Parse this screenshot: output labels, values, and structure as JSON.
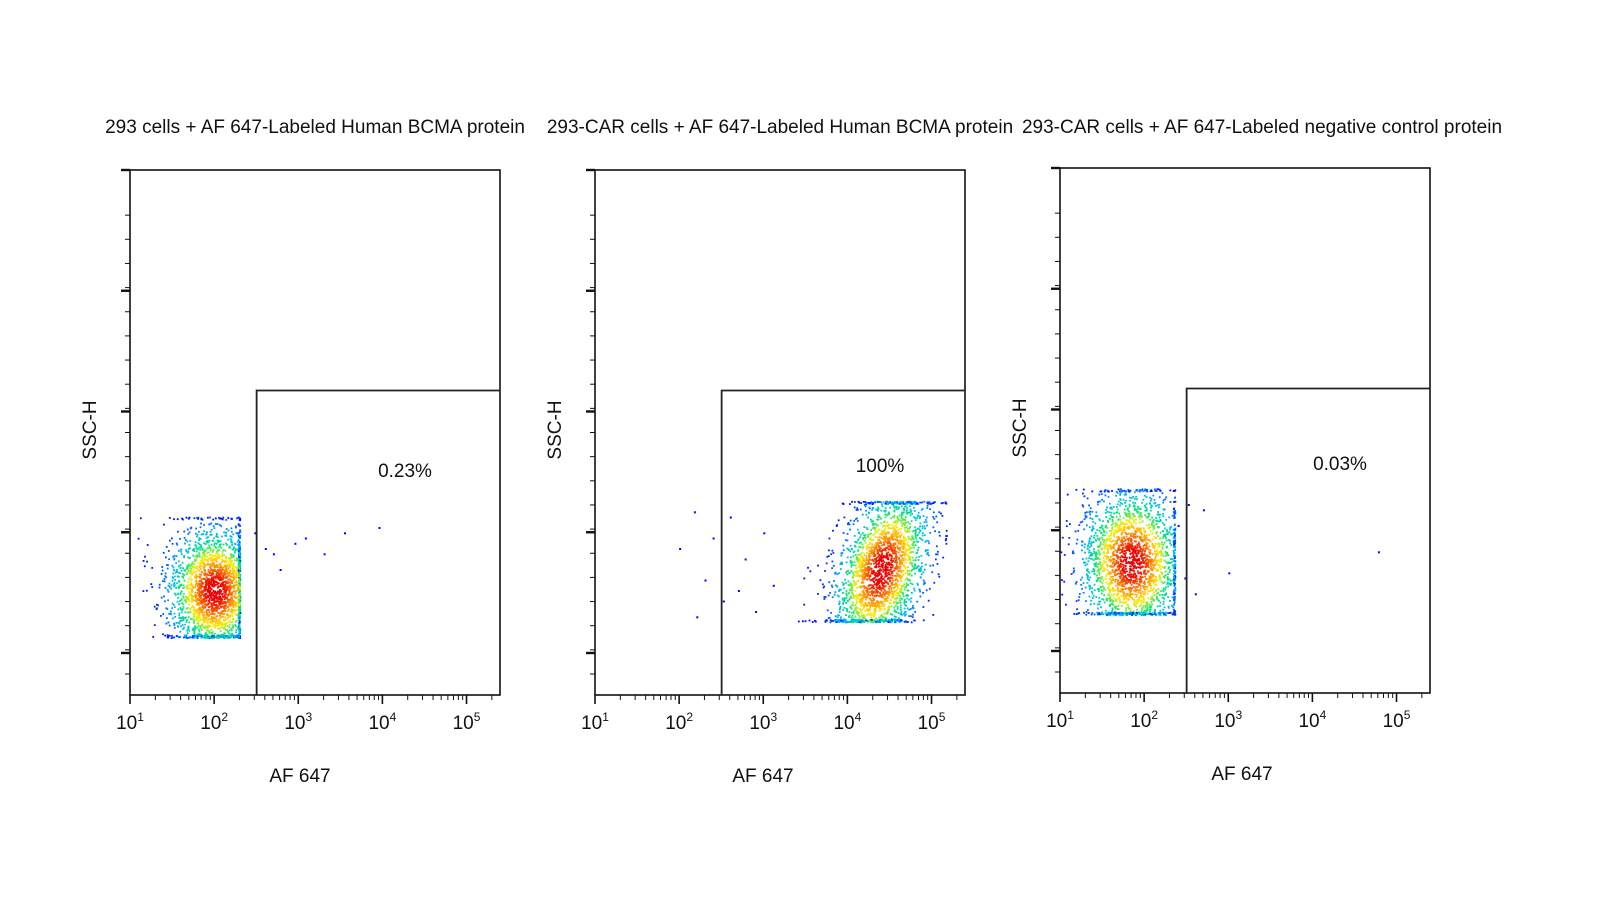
{
  "figure": {
    "panels": [
      {
        "title": "293 cells + AF 647-Labeled Human BCMA protein",
        "ylabel": "SSC-H",
        "xlabel": "AF 647",
        "gate_label": "0.23%"
      },
      {
        "title": "293-CAR cells + AF 647-Labeled Human BCMA protein",
        "ylabel": "SSC-H",
        "xlabel": "AF 647",
        "gate_label": "100%"
      },
      {
        "title": "293-CAR cells + AF 647-Labeled negative control protein",
        "ylabel": "SSC-H",
        "xlabel": "AF 647",
        "gate_label": "0.03%"
      }
    ]
  },
  "chart_data": [
    {
      "type": "scatter",
      "title": "293 cells + AF 647-Labeled Human BCMA protein",
      "xlabel": "AF 647",
      "ylabel": "SSC-H",
      "x_scale": "log",
      "xlim": [
        10,
        250000
      ],
      "x_ticks": [
        10,
        100,
        1000,
        10000,
        100000
      ],
      "x_tick_labels": [
        "10^1",
        "10^2",
        "10^3",
        "10^4",
        "10^5"
      ],
      "ylim": [
        0,
        1
      ],
      "y_tick_labels_shown": false,
      "grid": false,
      "gate": {
        "x_min": 320,
        "y_max_fraction": 0.58
      },
      "gate_percent": 0.23,
      "gate_label": "0.23%",
      "population": {
        "x_center": 100,
        "x_log_spread": 0.28,
        "y_center_fraction": 0.2,
        "y_spread_fraction": 0.06,
        "x_max": 200,
        "y_min_fraction": 0.11,
        "y_max_fraction": 0.34
      },
      "outliers": [
        {
          "x": 300,
          "y": 0.31
        },
        {
          "x": 400,
          "y": 0.28
        },
        {
          "x": 500,
          "y": 0.27
        },
        {
          "x": 600,
          "y": 0.24
        },
        {
          "x": 900,
          "y": 0.29
        },
        {
          "x": 1200,
          "y": 0.3
        },
        {
          "x": 2000,
          "y": 0.27
        },
        {
          "x": 3500,
          "y": 0.31
        },
        {
          "x": 9000,
          "y": 0.32
        }
      ]
    },
    {
      "type": "scatter",
      "title": "293-CAR cells + AF 647-Labeled Human BCMA protein",
      "xlabel": "AF 647",
      "ylabel": "SSC-H",
      "x_scale": "log",
      "xlim": [
        10,
        250000
      ],
      "x_ticks": [
        10,
        100,
        1000,
        10000,
        100000
      ],
      "x_tick_labels": [
        "10^1",
        "10^2",
        "10^3",
        "10^4",
        "10^5"
      ],
      "ylim": [
        0,
        1
      ],
      "y_tick_labels_shown": false,
      "grid": false,
      "gate": {
        "x_min": 320,
        "y_max_fraction": 0.58
      },
      "gate_percent": 100,
      "gate_label": "100%",
      "population": {
        "x_center": 25000,
        "x_log_spread": 0.28,
        "y_center_fraction": 0.24,
        "y_spread_fraction": 0.07,
        "x_min": 2500,
        "x_max": 150000,
        "y_min_fraction": 0.14,
        "y_max_fraction": 0.37
      },
      "outliers": [
        {
          "x": 100,
          "y": 0.28
        },
        {
          "x": 150,
          "y": 0.35
        },
        {
          "x": 160,
          "y": 0.15
        },
        {
          "x": 200,
          "y": 0.22
        },
        {
          "x": 250,
          "y": 0.3
        },
        {
          "x": 330,
          "y": 0.18
        },
        {
          "x": 400,
          "y": 0.34
        },
        {
          "x": 500,
          "y": 0.2
        },
        {
          "x": 600,
          "y": 0.26
        },
        {
          "x": 800,
          "y": 0.16
        },
        {
          "x": 1000,
          "y": 0.31
        },
        {
          "x": 1300,
          "y": 0.21
        }
      ]
    },
    {
      "type": "scatter",
      "title": "293-CAR cells + AF 647-Labeled negative control protein",
      "xlabel": "AF 647",
      "ylabel": "SSC-H",
      "x_scale": "log",
      "xlim": [
        10,
        250000
      ],
      "x_ticks": [
        10,
        100,
        1000,
        10000,
        100000
      ],
      "x_tick_labels": [
        "10^1",
        "10^2",
        "10^3",
        "10^4",
        "10^5"
      ],
      "ylim": [
        0,
        1
      ],
      "y_tick_labels_shown": false,
      "grid": false,
      "gate": {
        "x_min": 320,
        "y_max_fraction": 0.58
      },
      "gate_percent": 0.03,
      "gate_label": "0.03%",
      "population": {
        "x_center": 70,
        "x_log_spread": 0.3,
        "y_center_fraction": 0.25,
        "y_spread_fraction": 0.07,
        "x_max": 230,
        "y_min_fraction": 0.15,
        "y_max_fraction": 0.39
      },
      "outliers": [
        {
          "x": 250,
          "y": 0.32
        },
        {
          "x": 300,
          "y": 0.22
        },
        {
          "x": 330,
          "y": 0.36
        },
        {
          "x": 400,
          "y": 0.19
        },
        {
          "x": 500,
          "y": 0.35
        },
        {
          "x": 1000,
          "y": 0.23
        },
        {
          "x": 60000,
          "y": 0.27
        }
      ]
    }
  ],
  "colors": {
    "density_scale": [
      "#0000ff",
      "#00b4ff",
      "#00e676",
      "#ffee00",
      "#ff8800",
      "#ee0000"
    ],
    "axis": "#111111",
    "gate": "#222222",
    "background": "#ffffff"
  }
}
